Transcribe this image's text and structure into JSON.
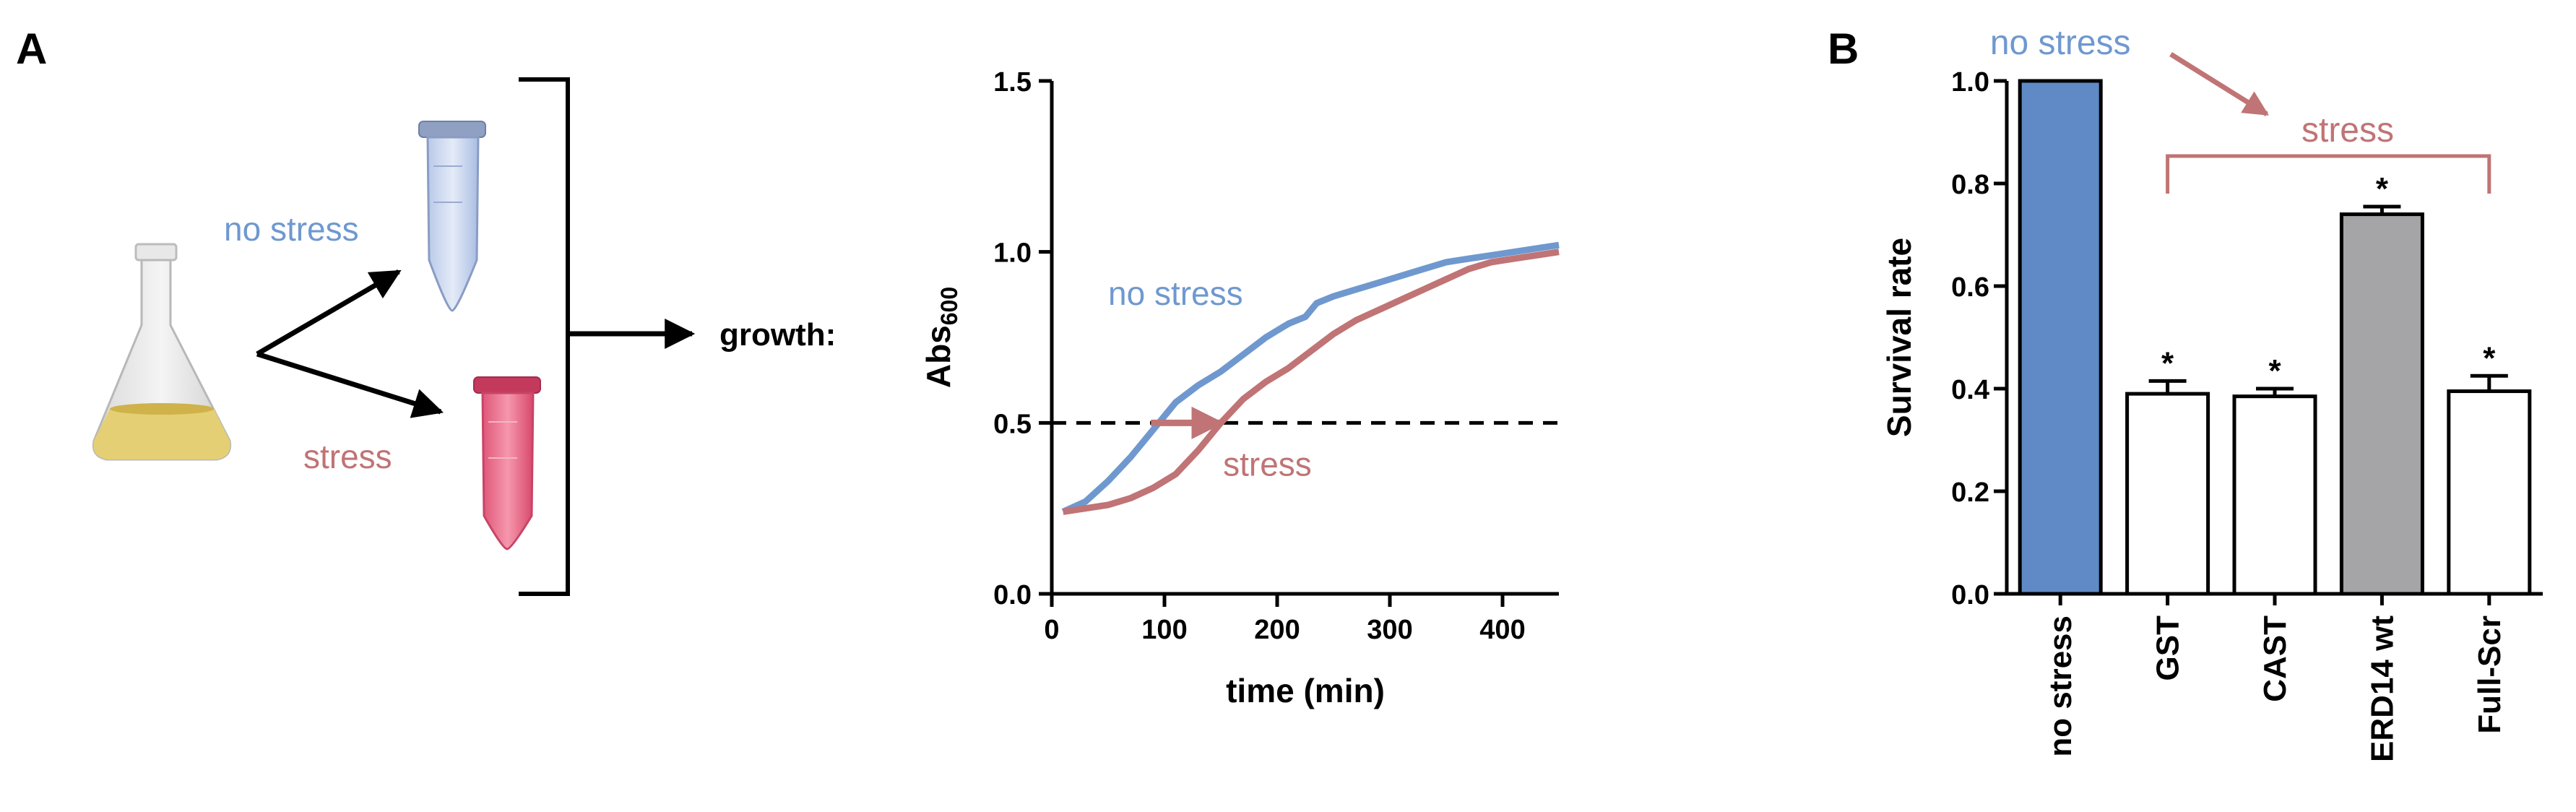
{
  "panel_a": {
    "label": "A",
    "schematic": {
      "no_stress_label": "no stress",
      "stress_label": "stress",
      "growth_label": "growth:"
    },
    "chart": {
      "type": "line",
      "ylabel_main": "Abs",
      "ylabel_sub": "600",
      "xlabel": "time (min)",
      "xlim": [
        0,
        450
      ],
      "ylim": [
        0,
        1.5
      ],
      "xticks": [
        "0",
        "100",
        "200",
        "300",
        "400"
      ],
      "yticks": [
        "0.0",
        "0.5",
        "1.0",
        "1.5"
      ],
      "threshold": 0.5,
      "annotations": {
        "no_stress": "no stress",
        "stress": "stress"
      },
      "series": [
        {
          "key": "no_stress",
          "color": "#6f98cf",
          "x": [
            10,
            30,
            50,
            70,
            90,
            110,
            130,
            150,
            170,
            190,
            210,
            225,
            235,
            250,
            270,
            290,
            310,
            330,
            350,
            370,
            390,
            410,
            430,
            450
          ],
          "y": [
            0.24,
            0.27,
            0.33,
            0.4,
            0.48,
            0.56,
            0.61,
            0.65,
            0.7,
            0.75,
            0.79,
            0.81,
            0.85,
            0.87,
            0.89,
            0.91,
            0.93,
            0.95,
            0.97,
            0.98,
            0.99,
            1.0,
            1.01,
            1.02
          ]
        },
        {
          "key": "stress",
          "color": "#c07475",
          "x": [
            10,
            30,
            50,
            70,
            90,
            110,
            130,
            150,
            170,
            190,
            210,
            230,
            250,
            270,
            290,
            310,
            330,
            350,
            370,
            390,
            410,
            430,
            450
          ],
          "y": [
            0.24,
            0.25,
            0.26,
            0.28,
            0.31,
            0.35,
            0.42,
            0.5,
            0.57,
            0.62,
            0.66,
            0.71,
            0.76,
            0.8,
            0.83,
            0.86,
            0.89,
            0.92,
            0.95,
            0.97,
            0.98,
            0.99,
            1.0
          ]
        }
      ]
    }
  },
  "panel_b": {
    "label": "B",
    "chart_data": {
      "type": "bar",
      "ylabel": "Survival rate",
      "ylim": [
        0,
        1.0
      ],
      "yticks": [
        "0.0",
        "0.2",
        "0.4",
        "0.6",
        "0.8",
        "1.0"
      ],
      "categories": [
        "no stress",
        "GST",
        "CAST",
        "ERD14 wt",
        "Full-Scr"
      ],
      "values": [
        1.0,
        0.39,
        0.385,
        0.74,
        0.395
      ],
      "errors": [
        0,
        0.025,
        0.015,
        0.015,
        0.03
      ],
      "fills": [
        "#5f8ac6",
        "#ffffff",
        "#ffffff",
        "#a5a5a8",
        "#ffffff"
      ],
      "significance": [
        "",
        "*",
        "*",
        "*",
        "*"
      ],
      "annotation_no_stress": "no stress",
      "annotation_stress": "stress"
    }
  },
  "colors": {
    "blue": "#6f98cf",
    "red": "#c07475",
    "axis": "#000000"
  }
}
